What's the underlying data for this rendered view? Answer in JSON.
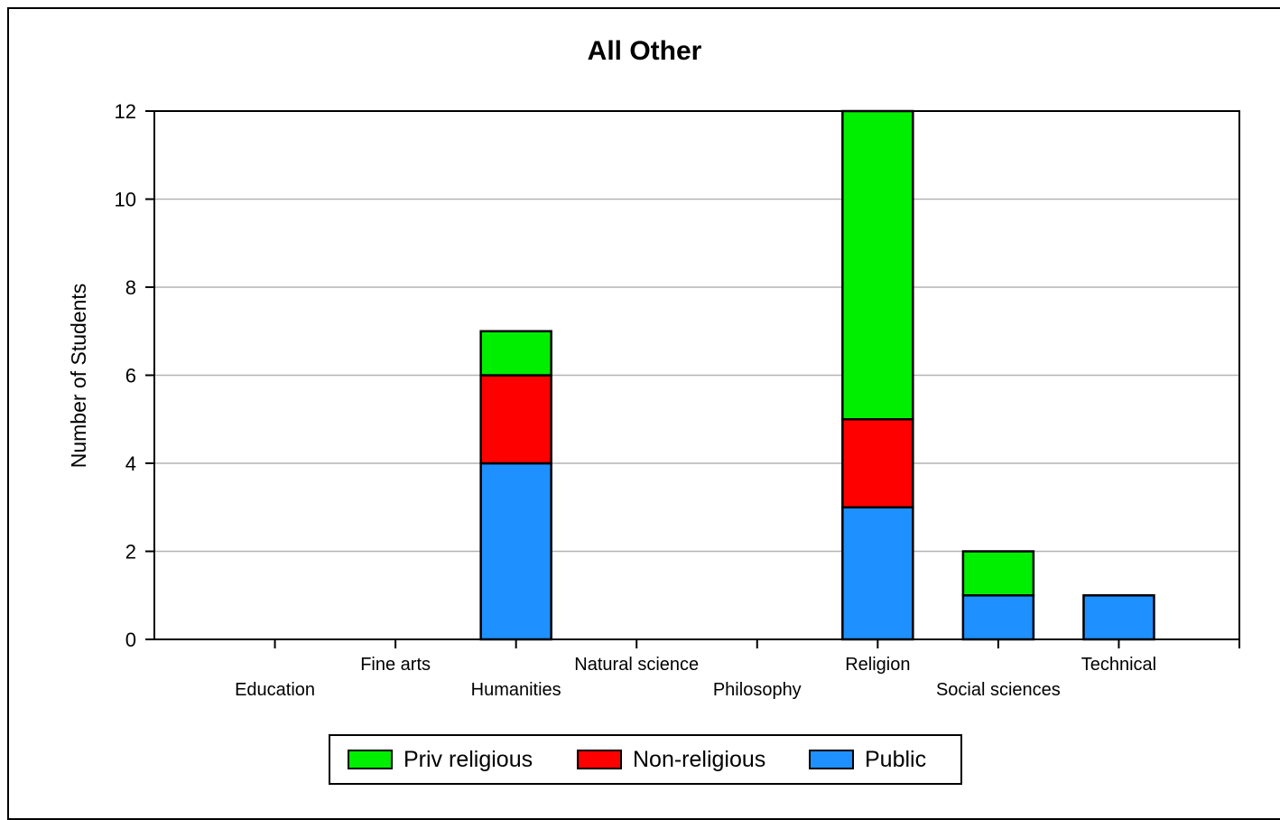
{
  "chart_data": {
    "type": "bar",
    "stacked": true,
    "title": "All Other",
    "xlabel": "",
    "ylabel": "Number of Students",
    "ylim": [
      0,
      12
    ],
    "yticks": [
      0,
      2,
      4,
      6,
      8,
      10,
      12
    ],
    "grid": true,
    "legend_position": "bottom",
    "categories": [
      "Education",
      "Fine arts",
      "Humanities",
      "Natural science",
      "Philosophy",
      "Religion",
      "Social sciences",
      "Technical"
    ],
    "series": [
      {
        "name": "Public",
        "color": "#1e90ff",
        "values": [
          0,
          0,
          4,
          0,
          0,
          3,
          1,
          1
        ]
      },
      {
        "name": "Non-religious",
        "color": "#ff0000",
        "values": [
          0,
          0,
          2,
          0,
          0,
          2,
          0,
          0
        ]
      },
      {
        "name": "Priv religious",
        "color": "#00ee00",
        "values": [
          0,
          0,
          1,
          0,
          0,
          7,
          1,
          0
        ]
      }
    ],
    "legend_order": [
      "Priv religious",
      "Non-religious",
      "Public"
    ]
  }
}
